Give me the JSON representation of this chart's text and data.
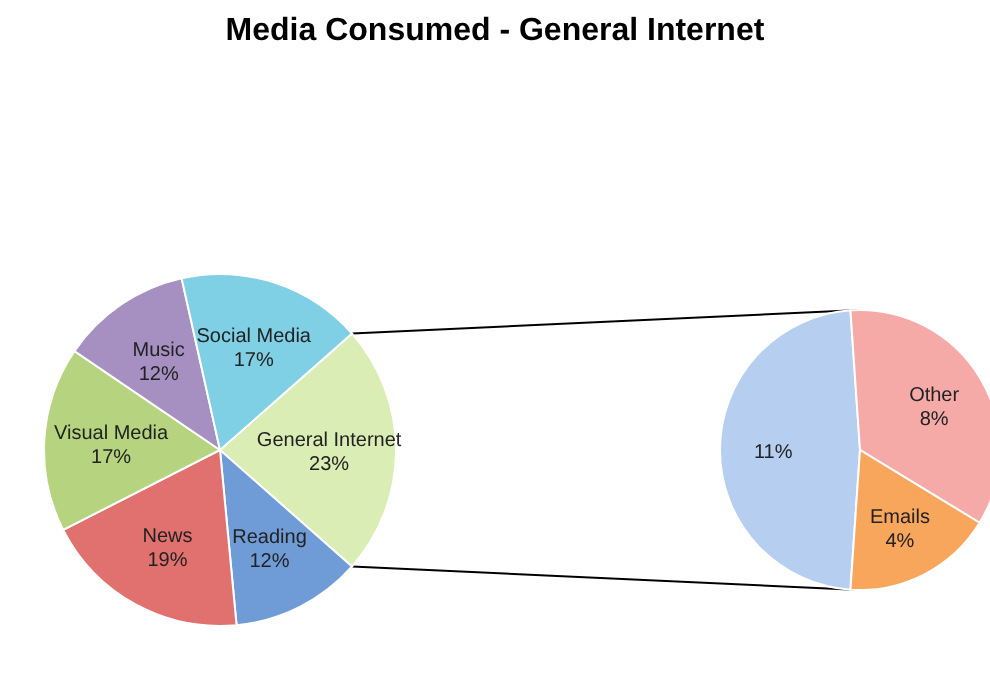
{
  "chart_data": [
    {
      "type": "pie",
      "title": "Media Consumed - General Internet",
      "categories": [
        "General Internet",
        "Reading",
        "News",
        "Visual Media",
        "Music",
        "Social Media"
      ],
      "values": [
        23,
        12,
        19,
        17,
        12,
        17
      ],
      "value_labels": [
        "23%",
        "12%",
        "19%",
        "17%",
        "12%",
        "17%"
      ],
      "colors": [
        "#d9edb4",
        "#6f9cd6",
        "#e0716e",
        "#b6d47f",
        "#a690c2",
        "#7fcfe5"
      ]
    },
    {
      "type": "pie",
      "categories": [
        null,
        "Other",
        "Emails"
      ],
      "values": [
        11,
        8,
        4
      ],
      "value_labels": [
        "11%",
        "8%",
        "4%"
      ],
      "colors": [
        "#b6cff0",
        "#f5aaa8",
        "#f9a65d"
      ]
    }
  ]
}
